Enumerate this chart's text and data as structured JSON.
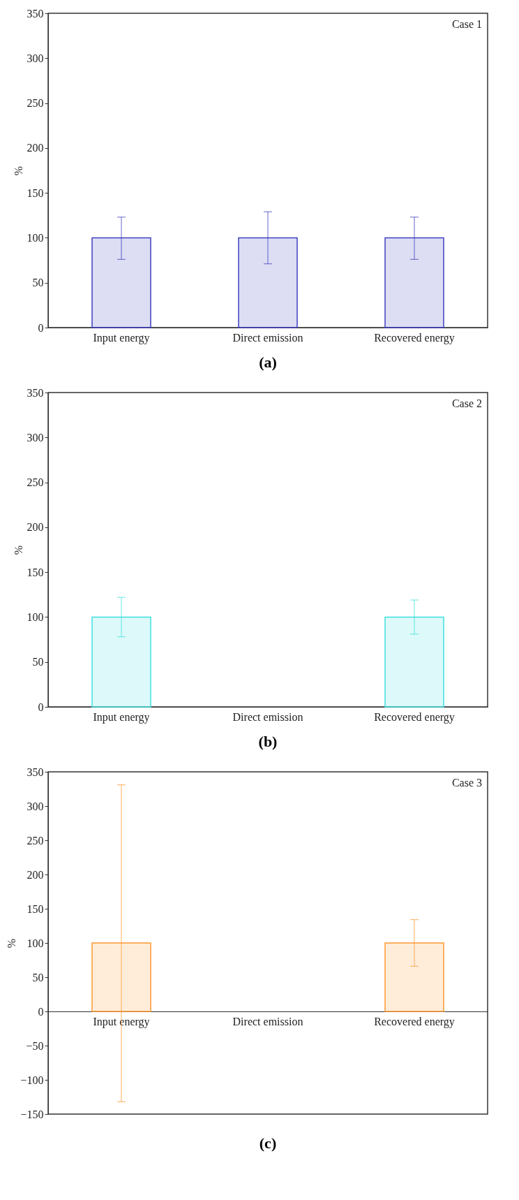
{
  "chart_data": [
    {
      "type": "bar",
      "title": "(a)",
      "ylabel": "%",
      "annotations": [
        "Case 1"
      ],
      "categories": [
        "Input energy",
        "Direct emission",
        "Recovered energy"
      ],
      "series": [
        {
          "color": "#4040c0",
          "values": [
            100,
            100,
            100
          ],
          "errors": [
            [
              76,
              123
            ],
            [
              71,
              129
            ],
            [
              76,
              123
            ]
          ]
        }
      ],
      "ylim": [
        0,
        350
      ],
      "yticks": [
        0,
        50,
        100,
        150,
        200,
        250,
        300,
        350
      ],
      "grid": false
    },
    {
      "type": "bar",
      "title": "(b)",
      "ylabel": "%",
      "annotations": [
        "Case 2"
      ],
      "categories": [
        "Input energy",
        "Direct emission",
        "Recovered energy"
      ],
      "series": [
        {
          "color": "#40e0e0",
          "values": [
            100,
            null,
            100
          ],
          "errors": [
            [
              78,
              122
            ],
            null,
            [
              81,
              119
            ]
          ]
        }
      ],
      "ylim": [
        0,
        350
      ],
      "yticks": [
        0,
        50,
        100,
        150,
        200,
        250,
        300,
        350
      ],
      "grid": false
    },
    {
      "type": "bar",
      "title": "(c)",
      "ylabel": "%",
      "annotations": [
        "Case 3"
      ],
      "categories": [
        "Input energy",
        "Direct emission",
        "Recovered energy"
      ],
      "series": [
        {
          "color": "#ff9933",
          "values": [
            100,
            null,
            100
          ],
          "errors": [
            [
              -132,
              331
            ],
            null,
            [
              66,
              134
            ]
          ]
        }
      ],
      "ylim": [
        -150,
        350
      ],
      "yticks": [
        -150,
        -100,
        -50,
        0,
        50,
        100,
        150,
        200,
        250,
        300,
        350
      ],
      "grid": false
    }
  ]
}
